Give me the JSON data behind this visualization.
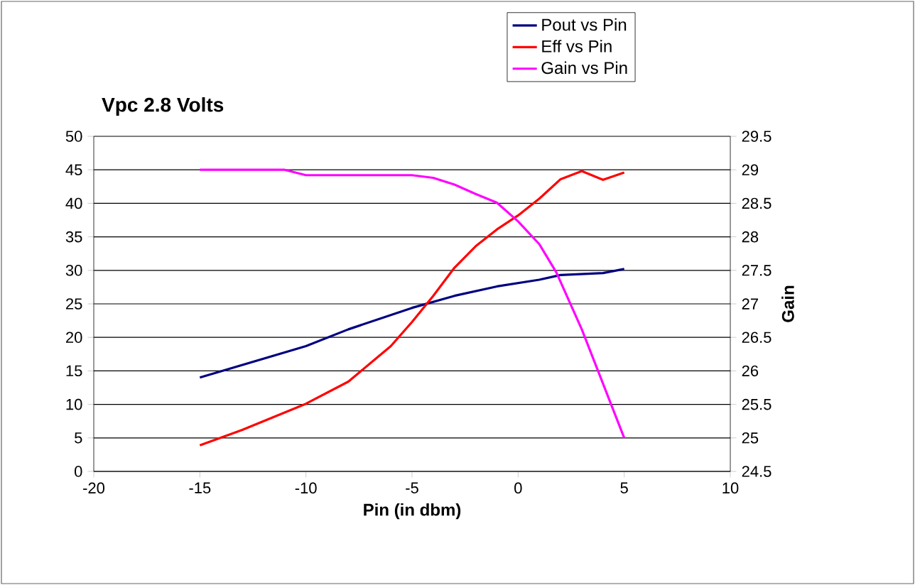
{
  "chart_data": {
    "type": "line",
    "title": "Vpc 2.8 Volts",
    "xlabel": "Pin (in dbm)",
    "y2label": "Gain",
    "xlim": [
      -20,
      10
    ],
    "xticks": [
      -20,
      -15,
      -10,
      -5,
      0,
      5,
      10
    ],
    "ylim": [
      0,
      50
    ],
    "yticks": [
      0,
      5,
      10,
      15,
      20,
      25,
      30,
      35,
      40,
      45,
      50
    ],
    "y2lim": [
      24.5,
      29.5
    ],
    "y2ticks": [
      24.5,
      25,
      25.5,
      26,
      26.5,
      27,
      27.5,
      28,
      28.5,
      29,
      29.5
    ],
    "grid": "y",
    "legend": "top",
    "line_style": "solid",
    "series": [
      {
        "name": "Pout vs Pin",
        "color": "#000080",
        "x": [
          -15,
          -10,
          -8,
          -5,
          -3,
          -1,
          1,
          2,
          4,
          5
        ],
        "values": [
          14.0,
          18.7,
          21.2,
          24.4,
          26.2,
          27.6,
          28.6,
          29.3,
          29.6,
          30.2
        ]
      },
      {
        "name": "Eff vs Pin",
        "color": "#ff0000",
        "x": [
          -15,
          -13,
          -11,
          -10,
          -8,
          -6,
          -5,
          -4,
          -3,
          -2,
          -1,
          0,
          1,
          2,
          3,
          4,
          5
        ],
        "values": [
          3.9,
          6.2,
          8.8,
          10.1,
          13.4,
          18.7,
          22.3,
          26.2,
          30.4,
          33.6,
          36.1,
          38.2,
          40.7,
          43.6,
          44.8,
          43.5,
          44.6
        ]
      },
      {
        "name": "Gain vs Pin",
        "color": "#ff00ff",
        "axis": "y2",
        "x": [
          -15,
          -11,
          -10,
          -5,
          -4,
          -3,
          -2,
          -1,
          0,
          1,
          1.8,
          3,
          4,
          5
        ],
        "values": [
          29.0,
          29.0,
          28.92,
          28.92,
          28.88,
          28.78,
          28.64,
          28.51,
          28.23,
          27.89,
          27.47,
          26.62,
          25.81,
          25.0
        ]
      }
    ]
  }
}
